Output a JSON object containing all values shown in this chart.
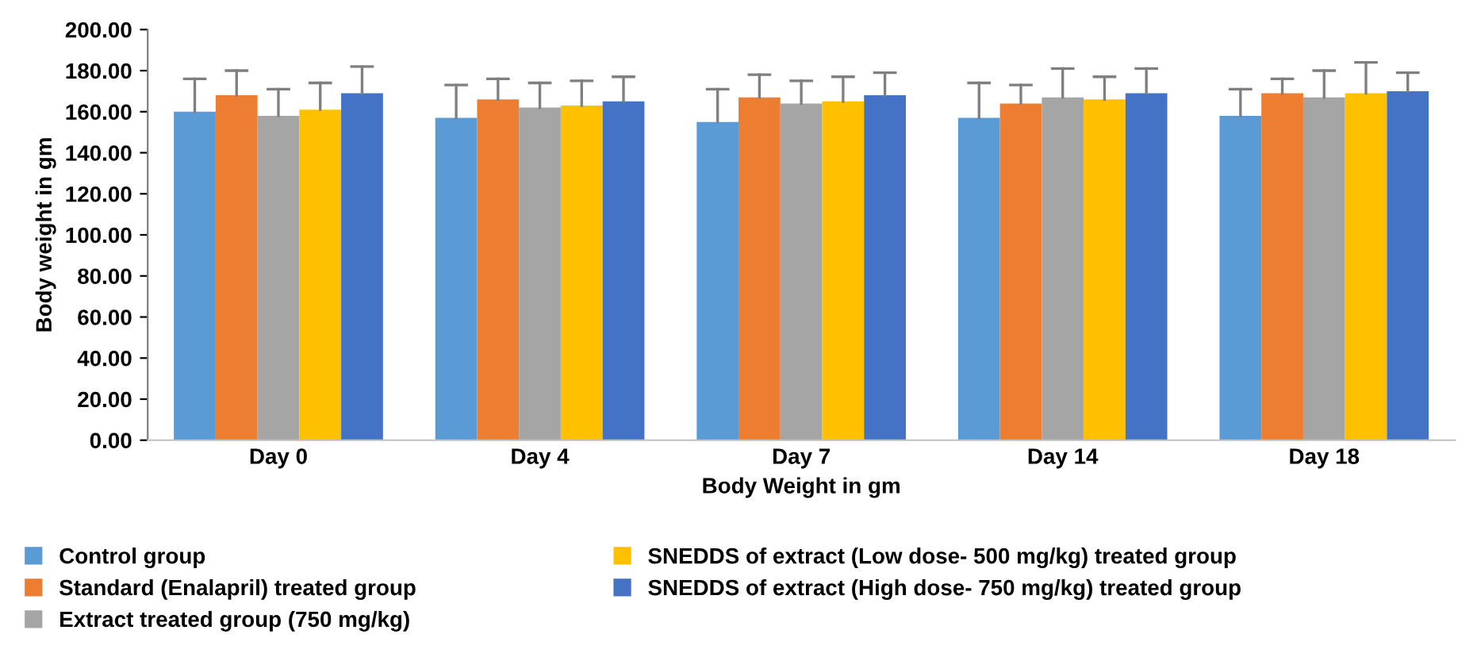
{
  "chart_data": {
    "type": "bar",
    "xlabel": "Body Weight in gm",
    "ylabel": "Body weight in gm",
    "categories": [
      "Day 0",
      "Day 4",
      "Day 7",
      "Day 14",
      "Day 18"
    ],
    "ylim": [
      0,
      200
    ],
    "yticks": [
      {
        "value": 0,
        "label": "0.00"
      },
      {
        "value": 20,
        "label": "20.00"
      },
      {
        "value": 40,
        "label": "40.00"
      },
      {
        "value": 60,
        "label": "60.00"
      },
      {
        "value": 80,
        "label": "80.00"
      },
      {
        "value": 100,
        "label": "100.00"
      },
      {
        "value": 120,
        "label": "120.00"
      },
      {
        "value": 140,
        "label": "140.00"
      },
      {
        "value": 160,
        "label": "160.00"
      },
      {
        "value": 180,
        "label": "180.00"
      },
      {
        "value": 200,
        "label": "200.00"
      }
    ],
    "grid": false,
    "legend": "bottom",
    "series": [
      {
        "name": "Control group",
        "color": "#5b9bd5",
        "values": [
          160,
          157,
          155,
          157,
          158
        ],
        "errors": [
          [
            160,
            176
          ],
          [
            157,
            173
          ],
          [
            155,
            171
          ],
          [
            157,
            174
          ],
          [
            158,
            171
          ]
        ]
      },
      {
        "name": "Standard (Enalapril) treated group",
        "color": "#ed7d31",
        "values": [
          168,
          166,
          167,
          164,
          169
        ],
        "errors": [
          [
            168,
            180
          ],
          [
            166,
            176
          ],
          [
            167,
            178
          ],
          [
            164,
            173
          ],
          [
            169,
            176
          ]
        ]
      },
      {
        "name": "Extract treated group (750 mg/kg)",
        "color": "#a5a5a5",
        "values": [
          158,
          162,
          164,
          167,
          167
        ],
        "errors": [
          [
            158,
            171
          ],
          [
            162,
            174
          ],
          [
            164,
            175
          ],
          [
            167,
            181
          ],
          [
            167,
            180
          ]
        ]
      },
      {
        "name": "SNEDDS of extract (Low dose- 500 mg/kg) treated group",
        "color": "#ffc000",
        "values": [
          161,
          163,
          165,
          166,
          169
        ],
        "errors": [
          [
            161,
            174
          ],
          [
            163,
            175
          ],
          [
            165,
            177
          ],
          [
            166,
            177
          ],
          [
            169,
            184
          ]
        ]
      },
      {
        "name": "SNEDDS of extract (High dose- 750 mg/kg) treated group",
        "color": "#4472c4",
        "values": [
          169,
          165,
          168,
          169,
          170
        ],
        "errors": [
          [
            169,
            182
          ],
          [
            165,
            177
          ],
          [
            168,
            179
          ],
          [
            169,
            181
          ],
          [
            170,
            179
          ]
        ]
      }
    ]
  }
}
